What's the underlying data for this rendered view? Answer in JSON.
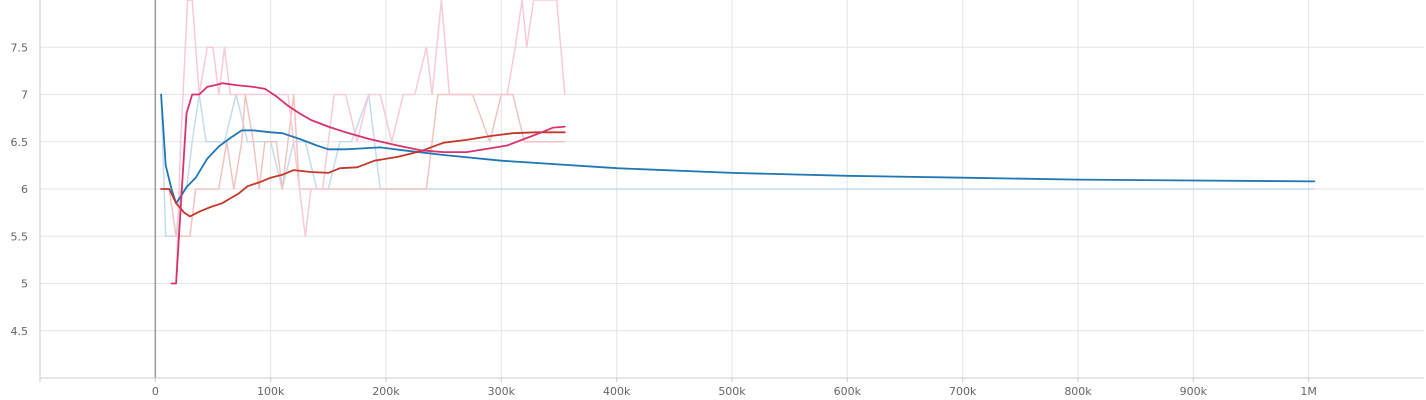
{
  "chart_data": {
    "type": "line",
    "title": "",
    "xlabel": "",
    "ylabel": "",
    "xlim": [
      -100000,
      1100000
    ],
    "ylim": [
      4,
      8
    ],
    "x_ticks": [
      0,
      100000,
      200000,
      300000,
      400000,
      500000,
      600000,
      700000,
      800000,
      900000,
      1000000
    ],
    "x_tick_labels": [
      "0",
      "100k",
      "200k",
      "300k",
      "400k",
      "500k",
      "600k",
      "700k",
      "800k",
      "900k",
      "1M"
    ],
    "y_ticks": [
      4.5,
      5,
      5.5,
      6,
      6.5,
      7,
      7.5
    ],
    "y_tick_labels": [
      "4.5",
      "5",
      "5.5",
      "6",
      "6.5",
      "7",
      "7.5"
    ],
    "grid": true,
    "legend": "none",
    "series": [
      {
        "color": "#1f77b4",
        "raw_color": "#c6dbef",
        "raw_points": [
          [
            5000,
            7.0
          ],
          [
            9000,
            5.5
          ],
          [
            14000,
            5.5
          ],
          [
            18000,
            5.5
          ],
          [
            22000,
            6.0
          ],
          [
            27000,
            6.0
          ],
          [
            32000,
            6.5
          ],
          [
            38000,
            7.0
          ],
          [
            44000,
            6.5
          ],
          [
            52000,
            6.5
          ],
          [
            60000,
            6.5
          ],
          [
            70000,
            7.0
          ],
          [
            80000,
            6.5
          ],
          [
            90000,
            6.5
          ],
          [
            100000,
            6.5
          ],
          [
            110000,
            6.0
          ],
          [
            120000,
            6.5
          ],
          [
            130000,
            6.5
          ],
          [
            140000,
            6.0
          ],
          [
            150000,
            6.0
          ],
          [
            160000,
            6.5
          ],
          [
            170000,
            6.5
          ],
          [
            185000,
            7.0
          ],
          [
            195000,
            6.0
          ],
          [
            210000,
            6.0
          ],
          [
            230000,
            6.0
          ],
          [
            260000,
            6.0
          ],
          [
            300000,
            6.0
          ],
          [
            400000,
            6.0
          ],
          [
            600000,
            6.0
          ],
          [
            800000,
            6.0
          ],
          [
            1000000,
            6.0
          ],
          [
            1005000,
            6.0
          ]
        ],
        "smoothed_points": [
          [
            5000,
            7.0
          ],
          [
            9000,
            6.25
          ],
          [
            14000,
            6.0
          ],
          [
            18000,
            5.85
          ],
          [
            22000,
            5.92
          ],
          [
            27000,
            6.02
          ],
          [
            35000,
            6.12
          ],
          [
            45000,
            6.32
          ],
          [
            55000,
            6.45
          ],
          [
            65000,
            6.54
          ],
          [
            75000,
            6.62
          ],
          [
            85000,
            6.62
          ],
          [
            100000,
            6.6
          ],
          [
            110000,
            6.59
          ],
          [
            125000,
            6.53
          ],
          [
            140000,
            6.46
          ],
          [
            150000,
            6.42
          ],
          [
            165000,
            6.42
          ],
          [
            180000,
            6.43
          ],
          [
            195000,
            6.44
          ],
          [
            215000,
            6.41
          ],
          [
            250000,
            6.36
          ],
          [
            300000,
            6.3
          ],
          [
            400000,
            6.22
          ],
          [
            500000,
            6.17
          ],
          [
            600000,
            6.14
          ],
          [
            700000,
            6.12
          ],
          [
            800000,
            6.1
          ],
          [
            900000,
            6.09
          ],
          [
            1005000,
            6.08
          ]
        ]
      },
      {
        "color": "#c0392b",
        "raw_color": "#f2c4bf",
        "raw_points": [
          [
            5000,
            6.0
          ],
          [
            12000,
            6.0
          ],
          [
            18000,
            5.5
          ],
          [
            25000,
            5.5
          ],
          [
            30000,
            5.5
          ],
          [
            35000,
            6.0
          ],
          [
            45000,
            6.0
          ],
          [
            55000,
            6.0
          ],
          [
            62000,
            6.5
          ],
          [
            68000,
            6.0
          ],
          [
            75000,
            6.5
          ],
          [
            78000,
            7.0
          ],
          [
            85000,
            6.5
          ],
          [
            90000,
            6.0
          ],
          [
            95000,
            6.5
          ],
          [
            105000,
            6.5
          ],
          [
            110000,
            6.0
          ],
          [
            120000,
            7.0
          ],
          [
            125000,
            6.0
          ],
          [
            135000,
            6.0
          ],
          [
            145000,
            6.0
          ],
          [
            155000,
            6.0
          ],
          [
            165000,
            6.0
          ],
          [
            175000,
            6.0
          ],
          [
            185000,
            6.0
          ],
          [
            195000,
            6.0
          ],
          [
            205000,
            6.0
          ],
          [
            215000,
            6.0
          ],
          [
            225000,
            6.0
          ],
          [
            235000,
            6.0
          ],
          [
            245000,
            7.0
          ],
          [
            255000,
            7.0
          ],
          [
            265000,
            7.0
          ],
          [
            275000,
            7.0
          ],
          [
            290000,
            6.5
          ],
          [
            300000,
            7.0
          ],
          [
            310000,
            7.0
          ],
          [
            320000,
            6.5
          ],
          [
            330000,
            6.5
          ],
          [
            340000,
            6.5
          ],
          [
            350000,
            6.5
          ],
          [
            355000,
            6.5
          ]
        ],
        "smoothed_points": [
          [
            5000,
            6.0
          ],
          [
            12000,
            6.0
          ],
          [
            18000,
            5.85
          ],
          [
            25000,
            5.75
          ],
          [
            30000,
            5.71
          ],
          [
            38000,
            5.76
          ],
          [
            48000,
            5.81
          ],
          [
            58000,
            5.85
          ],
          [
            65000,
            5.9
          ],
          [
            72000,
            5.95
          ],
          [
            80000,
            6.03
          ],
          [
            90000,
            6.07
          ],
          [
            100000,
            6.12
          ],
          [
            110000,
            6.15
          ],
          [
            120000,
            6.2
          ],
          [
            135000,
            6.18
          ],
          [
            150000,
            6.17
          ],
          [
            160000,
            6.22
          ],
          [
            175000,
            6.23
          ],
          [
            190000,
            6.3
          ],
          [
            210000,
            6.34
          ],
          [
            230000,
            6.4
          ],
          [
            250000,
            6.49
          ],
          [
            270000,
            6.52
          ],
          [
            290000,
            6.56
          ],
          [
            310000,
            6.59
          ],
          [
            330000,
            6.6
          ],
          [
            355000,
            6.6
          ]
        ]
      },
      {
        "color": "#d6336c",
        "raw_color": "#f8cad6",
        "raw_points": [
          [
            14000,
            5.0
          ],
          [
            18000,
            5.0
          ],
          [
            22000,
            6.5
          ],
          [
            28000,
            8.0
          ],
          [
            32000,
            8.0
          ],
          [
            38000,
            7.0
          ],
          [
            45000,
            7.5
          ],
          [
            50000,
            7.5
          ],
          [
            55000,
            7.0
          ],
          [
            60000,
            7.5
          ],
          [
            65000,
            7.0
          ],
          [
            75000,
            7.0
          ],
          [
            85000,
            7.0
          ],
          [
            95000,
            7.0
          ],
          [
            105000,
            7.0
          ],
          [
            115000,
            7.0
          ],
          [
            120000,
            6.5
          ],
          [
            130000,
            5.5
          ],
          [
            135000,
            6.0
          ],
          [
            145000,
            6.0
          ],
          [
            155000,
            7.0
          ],
          [
            165000,
            7.0
          ],
          [
            175000,
            6.5
          ],
          [
            185000,
            7.0
          ],
          [
            195000,
            7.0
          ],
          [
            205000,
            6.5
          ],
          [
            215000,
            7.0
          ],
          [
            225000,
            7.0
          ],
          [
            235000,
            7.5
          ],
          [
            240000,
            7.0
          ],
          [
            248000,
            8.0
          ],
          [
            255000,
            7.0
          ],
          [
            265000,
            7.0
          ],
          [
            275000,
            7.0
          ],
          [
            285000,
            7.0
          ],
          [
            295000,
            7.0
          ],
          [
            305000,
            7.0
          ],
          [
            312000,
            7.5
          ],
          [
            318000,
            8.0
          ],
          [
            322000,
            7.5
          ],
          [
            328000,
            8.0
          ],
          [
            338000,
            8.0
          ],
          [
            348000,
            8.0
          ],
          [
            355000,
            7.0
          ]
        ],
        "smoothed_points": [
          [
            14000,
            5.0
          ],
          [
            18000,
            5.0
          ],
          [
            22000,
            5.8
          ],
          [
            27000,
            6.8
          ],
          [
            32000,
            7.0
          ],
          [
            38000,
            7.0
          ],
          [
            45000,
            7.08
          ],
          [
            52000,
            7.1
          ],
          [
            58000,
            7.12
          ],
          [
            70000,
            7.1
          ],
          [
            85000,
            7.08
          ],
          [
            95000,
            7.06
          ],
          [
            105000,
            6.98
          ],
          [
            115000,
            6.88
          ],
          [
            125000,
            6.8
          ],
          [
            135000,
            6.73
          ],
          [
            150000,
            6.66
          ],
          [
            165000,
            6.6
          ],
          [
            185000,
            6.53
          ],
          [
            210000,
            6.46
          ],
          [
            230000,
            6.41
          ],
          [
            250000,
            6.39
          ],
          [
            270000,
            6.39
          ],
          [
            290000,
            6.43
          ],
          [
            305000,
            6.46
          ],
          [
            320000,
            6.53
          ],
          [
            335000,
            6.6
          ],
          [
            345000,
            6.65
          ],
          [
            355000,
            6.66
          ]
        ]
      }
    ]
  }
}
